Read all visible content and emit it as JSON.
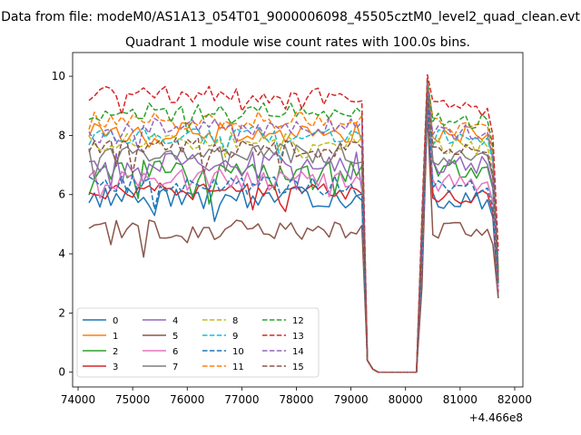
{
  "chart_data": {
    "type": "line",
    "suptitle": "Data from file: modeM0/AS1A13_054T01_9000006098_45505cztM0_level2_quad_clean.evt",
    "title": "Quadrant 1 module wise count rates with 100.0s bins.",
    "xlabel": "",
    "ylabel": "",
    "x_offset_label": "+4.466e8",
    "xlim": [
      73900,
      82150
    ],
    "ylim": [
      -0.5,
      10.8
    ],
    "x_ticks": [
      74000,
      75000,
      76000,
      77000,
      78000,
      79000,
      80000,
      81000,
      82000
    ],
    "x_tick_labels": [
      "74000",
      "75000",
      "76000",
      "77000",
      "78000",
      "79000",
      "80000",
      "81000",
      "82000"
    ],
    "y_ticks": [
      0,
      2,
      4,
      6,
      8,
      10
    ],
    "y_tick_labels": [
      "0",
      "2",
      "4",
      "6",
      "8",
      "10"
    ],
    "grid": false,
    "legend": {
      "placement": "lower-left",
      "columns": 4
    },
    "segment_1": {
      "x_start": 74200,
      "x_end": 79200,
      "step": 100
    },
    "gap": {
      "x_start": 79300,
      "x_end": 80200,
      "y_values": [
        0.4,
        0.1,
        0,
        0,
        0,
        0,
        0,
        0,
        0,
        0
      ]
    },
    "segment_2": {
      "x_start": 80300,
      "x_end": 81700,
      "step": 100
    },
    "series": [
      {
        "name": "0",
        "color": "#1f77b4",
        "dash": "solid",
        "seg1_mean": 5.9,
        "seg1_noise": 0.35,
        "seg2_mean": 5.8,
        "seg2_noise": 0.3,
        "seg2_peak": 9.6,
        "end_value": 2.5
      },
      {
        "name": "1",
        "color": "#ff7f0e",
        "dash": "solid",
        "seg1_mean": 8.1,
        "seg1_noise": 0.35,
        "seg2_mean": 8.0,
        "seg2_noise": 0.3,
        "seg2_peak": 9.8,
        "end_value": 3.3
      },
      {
        "name": "2",
        "color": "#2ca02c",
        "dash": "solid",
        "seg1_mean": 6.8,
        "seg1_noise": 0.4,
        "seg2_mean": 6.9,
        "seg2_noise": 0.35,
        "seg2_peak": 9.3,
        "end_value": 3.0
      },
      {
        "name": "3",
        "color": "#d62728",
        "dash": "solid",
        "seg1_mean": 6.1,
        "seg1_noise": 0.3,
        "seg2_mean": 6.0,
        "seg2_noise": 0.3,
        "seg2_peak": 9.0,
        "end_value": 2.7
      },
      {
        "name": "4",
        "color": "#9467bd",
        "dash": "solid",
        "seg1_mean": 7.1,
        "seg1_noise": 0.35,
        "seg2_mean": 7.0,
        "seg2_noise": 0.3,
        "seg2_peak": 9.4,
        "end_value": 3.1
      },
      {
        "name": "5",
        "color": "#8c564b",
        "dash": "solid",
        "seg1_mean": 4.8,
        "seg1_noise": 0.35,
        "seg2_mean": 4.8,
        "seg2_noise": 0.3,
        "seg2_peak": 8.8,
        "end_value": 2.5
      },
      {
        "name": "6",
        "color": "#e377c2",
        "dash": "solid",
        "seg1_mean": 6.5,
        "seg1_noise": 0.35,
        "seg2_mean": 6.4,
        "seg2_noise": 0.3,
        "seg2_peak": 9.1,
        "end_value": 2.8
      },
      {
        "name": "7",
        "color": "#7f7f7f",
        "dash": "solid",
        "seg1_mean": 7.4,
        "seg1_noise": 0.35,
        "seg2_mean": 7.3,
        "seg2_noise": 0.3,
        "seg2_peak": 9.4,
        "end_value": 3.0
      },
      {
        "name": "8",
        "color": "#bcbd22",
        "dash": "dashed",
        "seg1_mean": 7.8,
        "seg1_noise": 0.3,
        "seg2_mean": 7.6,
        "seg2_noise": 0.3,
        "seg2_peak": 9.5,
        "end_value": 3.2
      },
      {
        "name": "9",
        "color": "#17becf",
        "dash": "dashed",
        "seg1_mean": 8.0,
        "seg1_noise": 0.3,
        "seg2_mean": 7.9,
        "seg2_noise": 0.3,
        "seg2_peak": 9.6,
        "end_value": 3.3
      },
      {
        "name": "10",
        "color": "#1f77b4",
        "dash": "dashed",
        "seg1_mean": 6.3,
        "seg1_noise": 0.35,
        "seg2_mean": 6.2,
        "seg2_noise": 0.3,
        "seg2_peak": 9.2,
        "end_value": 2.9
      },
      {
        "name": "11",
        "color": "#ff7f0e",
        "dash": "dashed",
        "seg1_mean": 8.5,
        "seg1_noise": 0.3,
        "seg2_mean": 8.3,
        "seg2_noise": 0.3,
        "seg2_peak": 9.8,
        "end_value": 3.4
      },
      {
        "name": "12",
        "color": "#2ca02c",
        "dash": "dashed",
        "seg1_mean": 8.8,
        "seg1_noise": 0.3,
        "seg2_mean": 8.5,
        "seg2_noise": 0.3,
        "seg2_peak": 9.9,
        "end_value": 3.5
      },
      {
        "name": "13",
        "color": "#d62728",
        "dash": "dashed",
        "seg1_mean": 9.4,
        "seg1_noise": 0.3,
        "seg2_mean": 8.9,
        "seg2_noise": 0.3,
        "seg2_peak": 10.05,
        "end_value": 4.1
      },
      {
        "name": "14",
        "color": "#9467bd",
        "dash": "dashed",
        "seg1_mean": 8.3,
        "seg1_noise": 0.3,
        "seg2_mean": 8.1,
        "seg2_noise": 0.3,
        "seg2_peak": 9.7,
        "end_value": 3.4
      },
      {
        "name": "15",
        "color": "#8c564b",
        "dash": "dashed",
        "seg1_mean": 7.6,
        "seg1_noise": 0.35,
        "seg2_mean": 7.4,
        "seg2_noise": 0.3,
        "seg2_peak": 9.5,
        "end_value": 3.1
      }
    ]
  }
}
